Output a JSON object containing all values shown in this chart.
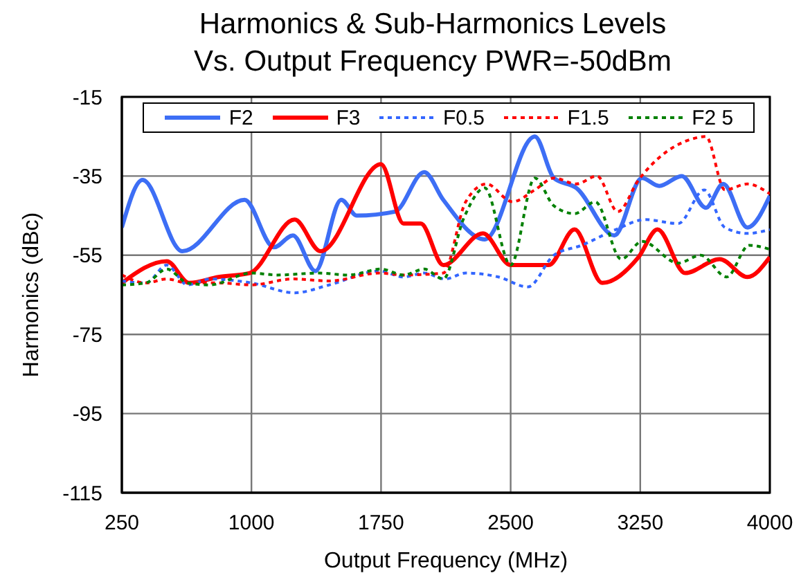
{
  "chart_data": {
    "type": "line",
    "title": "Harmonics & Sub-Harmonics Levels\nVs. Output Frequency PWR=-50dBm",
    "xlabel": "Output Frequency (MHz)",
    "ylabel": "Harmonics (dBc)",
    "xlim": [
      250,
      4000
    ],
    "xticks": [
      250,
      1000,
      1750,
      2500,
      3250,
      4000
    ],
    "ylim": [
      -115,
      -15
    ],
    "yticks": [
      -115,
      -95,
      -75,
      -55,
      -35,
      -15
    ],
    "grid": true,
    "legend": "top",
    "marker": "none",
    "series": [
      {
        "name": "F2",
        "color": "#3d6ef5",
        "line_style": "solid",
        "x": [
          250,
          370,
          600,
          960,
          1130,
          1240,
          1370,
          1520,
          1610,
          1830,
          2000,
          2110,
          2350,
          2640,
          2750,
          2880,
          3100,
          3260,
          3360,
          3490,
          3630,
          3730,
          3870,
          4000
        ],
        "values": [
          -48,
          -36,
          -54,
          -41,
          -53,
          -50,
          -59,
          -41,
          -45,
          -44,
          -34,
          -41,
          -51,
          -25,
          -35.5,
          -38,
          -50,
          -35.5,
          -37.5,
          -35,
          -43,
          -37,
          -48,
          -40
        ]
      },
      {
        "name": "F3",
        "color": "#ff0000",
        "line_style": "solid",
        "x": [
          250,
          510,
          640,
          810,
          990,
          1250,
          1400,
          1750,
          1880,
          1980,
          2110,
          2340,
          2500,
          2720,
          2870,
          3030,
          3240,
          3350,
          3510,
          3710,
          3870,
          4000
        ],
        "values": [
          -62,
          -56.5,
          -62,
          -60.5,
          -59.5,
          -46,
          -54,
          -32,
          -47,
          -47,
          -57.5,
          -49.5,
          -57.5,
          -57.5,
          -48.5,
          -62,
          -55.5,
          -48.5,
          -59.5,
          -56,
          -60.5,
          -55.5
        ]
      },
      {
        "name": "F0.5",
        "color": "#3366ff",
        "line_style": "dotted",
        "x": [
          250,
          390,
          510,
          630,
          760,
          1000,
          1250,
          1450,
          1740,
          1880,
          2000,
          2120,
          2240,
          2430,
          2600,
          2750,
          2910,
          3110,
          3280,
          3470,
          3620,
          3740,
          3870,
          4000
        ],
        "values": [
          -61.5,
          -62,
          -57.5,
          -62.5,
          -61,
          -62,
          -64.5,
          -62.5,
          -59,
          -60.5,
          -59.5,
          -61,
          -59.5,
          -60.5,
          -63,
          -55,
          -52.5,
          -48.5,
          -46,
          -47,
          -38.5,
          -48,
          -49.5,
          -48.5
        ]
      },
      {
        "name": "F1.5",
        "color": "#ff0000",
        "line_style": "dotted",
        "x": [
          250,
          390,
          510,
          630,
          810,
          1000,
          1240,
          1450,
          1740,
          1880,
          2110,
          2240,
          2360,
          2510,
          2640,
          2750,
          2880,
          3000,
          3120,
          3240,
          3560,
          3630,
          3740,
          3870,
          4000
        ],
        "values": [
          -60,
          -62,
          -61,
          -62,
          -62,
          -62.5,
          -61,
          -61.5,
          -59.5,
          -60,
          -59.5,
          -41.5,
          -37,
          -41.5,
          -38.5,
          -35.5,
          -37,
          -35,
          -44,
          -36,
          -25.5,
          -25,
          -38.5,
          -37,
          -39.5
        ]
      },
      {
        "name": "F2 5",
        "color": "#008000",
        "line_style": "dotted",
        "x": [
          250,
          390,
          510,
          630,
          760,
          1000,
          1150,
          1390,
          1560,
          1750,
          1880,
          2000,
          2110,
          2230,
          2350,
          2500,
          2640,
          2750,
          2870,
          2990,
          3140,
          3260,
          3470,
          3600,
          3750,
          3880,
          4000
        ],
        "values": [
          -62.5,
          -62,
          -58.5,
          -62,
          -62.5,
          -59.5,
          -60,
          -59.5,
          -60,
          -58.5,
          -60,
          -58.5,
          -61,
          -45.5,
          -38,
          -57.5,
          -35.5,
          -42.5,
          -44.5,
          -41.5,
          -56,
          -51.5,
          -57,
          -55,
          -60.5,
          -52.5,
          -53.5
        ]
      }
    ]
  }
}
